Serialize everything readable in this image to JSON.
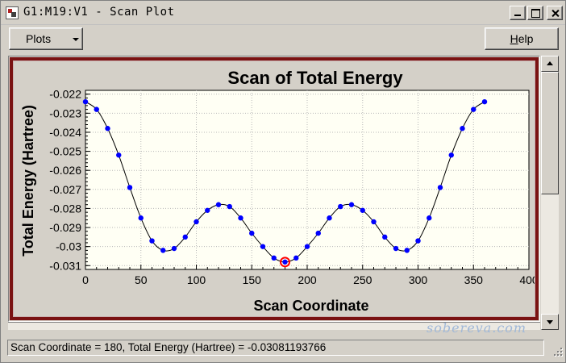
{
  "window": {
    "title": "G1:M19:V1 - Scan Plot"
  },
  "toolbar": {
    "plots_label": "Plots",
    "help_label_u": "H",
    "help_label_rest": "elp"
  },
  "status": {
    "text": "Scan Coordinate = 180, Total Energy (Hartree) = -0.03081193766"
  },
  "watermark": "sobereva.com",
  "colors": {
    "frame": "#7a1212",
    "plot_bg": "#fffff4",
    "points": "#0000ff",
    "line": "#000000",
    "selected_marker": "#ff0000"
  },
  "icons": [
    "app-icon",
    "minimize-icon",
    "maximize-icon",
    "close-icon",
    "dropdown-arrow-icon",
    "scroll-up-icon",
    "scroll-down-icon",
    "resize-grip-icon"
  ],
  "chart_data": {
    "type": "line",
    "title": "Scan of Total Energy",
    "xlabel": "Scan Coordinate",
    "ylabel": "Total Energy (Hartree)",
    "xlim": [
      0,
      400
    ],
    "ylim": [
      -0.0312,
      -0.0218
    ],
    "xticks": [
      "0",
      "50",
      "100",
      "150",
      "200",
      "250",
      "300",
      "350",
      "400"
    ],
    "xtick_values": [
      0,
      50,
      100,
      150,
      200,
      250,
      300,
      350,
      400
    ],
    "yticks": [
      "-0.022",
      "-0.023",
      "-0.024",
      "-0.025",
      "-0.026",
      "-0.027",
      "-0.028",
      "-0.029",
      "-0.03",
      "-0.031"
    ],
    "ytick_values": [
      -0.022,
      -0.023,
      -0.024,
      -0.025,
      -0.026,
      -0.027,
      -0.028,
      -0.029,
      -0.03,
      -0.031
    ],
    "grid": true,
    "legend": "none",
    "selected_point": {
      "x": 180,
      "y": -0.03081193766
    },
    "series": [
      {
        "x": [
          0,
          10,
          20,
          30,
          40,
          50,
          60,
          70,
          80,
          90,
          100,
          110,
          120,
          130,
          140,
          150,
          160,
          170,
          180,
          190,
          200,
          210,
          220,
          230,
          240,
          250,
          260,
          270,
          280,
          290,
          300,
          310,
          320,
          330,
          340,
          350,
          360
        ],
        "values": [
          -0.0224,
          -0.0228,
          -0.0238,
          -0.0252,
          -0.0269,
          -0.0285,
          -0.0297,
          -0.0302,
          -0.0301,
          -0.0295,
          -0.0287,
          -0.0281,
          -0.0278,
          -0.0279,
          -0.0285,
          -0.0293,
          -0.03,
          -0.0306,
          -0.03081,
          -0.0306,
          -0.03,
          -0.0293,
          -0.0285,
          -0.0279,
          -0.0278,
          -0.0281,
          -0.0287,
          -0.0295,
          -0.0301,
          -0.0302,
          -0.0297,
          -0.0285,
          -0.0269,
          -0.0252,
          -0.0238,
          -0.0228,
          -0.0224
        ]
      }
    ]
  }
}
